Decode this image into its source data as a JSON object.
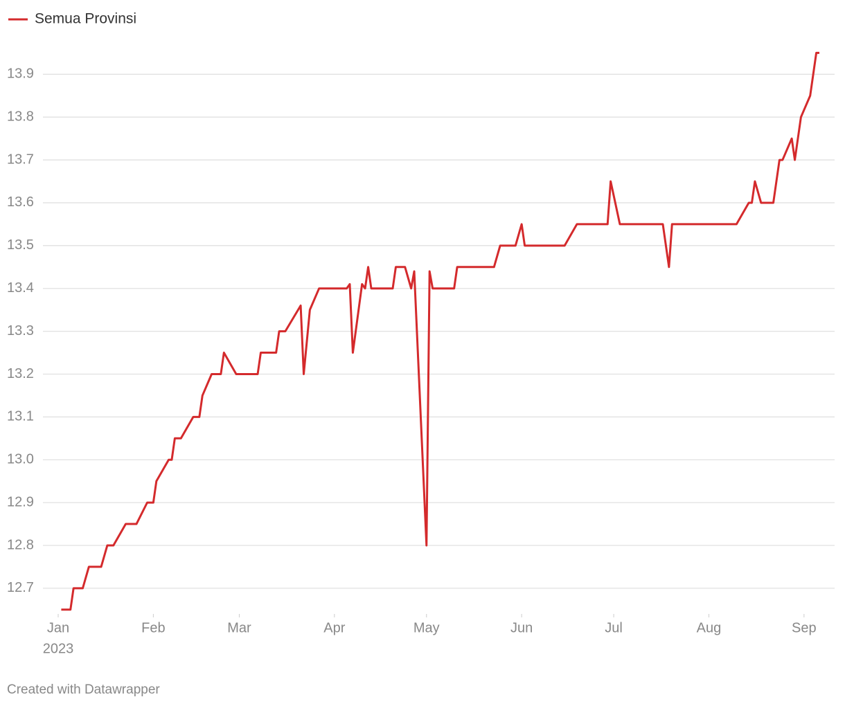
{
  "chart_data": {
    "type": "line",
    "series": [
      {
        "name": "Semua Provinsi",
        "color": "#d42a2c",
        "values": [
          12.65,
          12.65,
          12.7,
          12.7,
          12.75,
          12.75,
          12.8,
          12.8,
          12.85,
          12.85,
          12.9,
          12.9,
          12.95,
          13.0,
          13.0,
          13.05,
          13.05,
          13.1,
          13.1,
          13.15,
          13.2,
          13.2,
          13.25,
          13.2,
          13.2,
          13.25,
          13.25,
          13.3,
          13.3,
          13.36,
          13.2,
          13.35,
          13.4,
          13.4,
          13.41,
          13.25,
          13.41,
          13.4,
          13.45,
          13.4,
          13.4,
          13.45,
          13.45,
          13.4,
          13.44,
          12.8,
          13.44,
          13.4,
          13.4,
          13.45,
          13.45,
          13.5,
          13.5,
          13.55,
          13.5,
          13.5,
          13.5,
          13.55,
          13.55,
          13.65,
          13.55,
          13.55,
          13.55,
          13.45,
          13.55,
          13.55,
          13.6,
          13.6,
          13.65,
          13.6,
          13.6,
          13.7,
          13.7,
          13.75,
          13.7,
          13.8,
          13.85,
          13.95,
          13.95
        ]
      }
    ],
    "x": [
      1,
      4,
      5,
      8,
      10,
      14,
      16,
      18,
      22,
      25.5,
      29,
      31,
      32,
      36,
      37,
      38,
      40,
      44,
      46,
      47,
      50,
      53,
      54,
      58,
      65,
      66,
      71,
      72,
      74,
      79,
      80,
      82,
      85,
      94,
      95,
      96,
      99,
      100,
      101,
      102,
      109,
      110,
      113,
      115,
      116,
      120,
      121,
      122,
      129,
      130,
      142,
      144,
      149,
      151,
      152,
      155,
      165,
      169,
      179,
      180,
      183,
      184,
      197,
      199,
      200,
      221,
      225,
      226,
      227,
      229,
      233,
      235,
      236,
      239,
      240,
      242,
      245,
      247,
      248
    ],
    "xlim": [
      0,
      248
    ],
    "xticks": [
      {
        "value": 0,
        "label": "Jan"
      },
      {
        "value": 31,
        "label": "Feb"
      },
      {
        "value": 59,
        "label": "Mar"
      },
      {
        "value": 90,
        "label": "Apr"
      },
      {
        "value": 120,
        "label": "May"
      },
      {
        "value": 151,
        "label": "Jun"
      },
      {
        "value": 181,
        "label": "Jul"
      },
      {
        "value": 212,
        "label": "Aug"
      },
      {
        "value": 243,
        "label": "Sep"
      }
    ],
    "x_year_label": "2023",
    "ylim": [
      12.64,
      13.97
    ],
    "yticks": [
      {
        "value": 12.7,
        "label": "12.7"
      },
      {
        "value": 12.8,
        "label": "12.8"
      },
      {
        "value": 12.9,
        "label": "12.9"
      },
      {
        "value": 13.0,
        "label": "13.0"
      },
      {
        "value": 13.1,
        "label": "13.1"
      },
      {
        "value": 13.2,
        "label": "13.2"
      },
      {
        "value": 13.3,
        "label": "13.3"
      },
      {
        "value": 13.4,
        "label": "13.4"
      },
      {
        "value": 13.5,
        "label": "13.5"
      },
      {
        "value": 13.6,
        "label": "13.6"
      },
      {
        "value": 13.7,
        "label": "13.7"
      },
      {
        "value": 13.8,
        "label": "13.8"
      },
      {
        "value": 13.9,
        "label": "13.9"
      }
    ],
    "grid": true,
    "footer": "Created with Datawrapper"
  }
}
